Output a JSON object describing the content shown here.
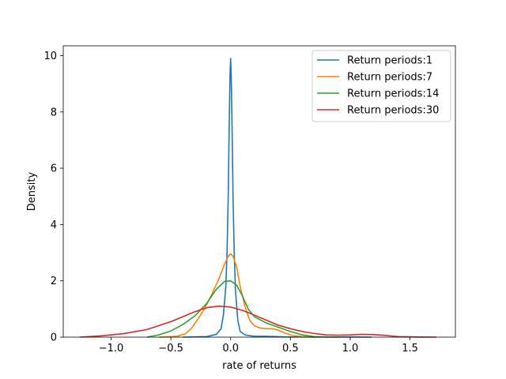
{
  "chart_data": {
    "type": "line",
    "title": "",
    "xlabel": "rate of returns",
    "ylabel": "Density",
    "xlim": [
      -1.4,
      1.88
    ],
    "ylim": [
      0,
      10.35
    ],
    "xticks": [
      -1.0,
      -0.5,
      0.0,
      0.5,
      1.0,
      1.5
    ],
    "xtick_labels": [
      "−1.0",
      "−0.5",
      "0.0",
      "0.5",
      "1.0",
      "1.5"
    ],
    "yticks": [
      0,
      2,
      4,
      6,
      8,
      10
    ],
    "ytick_labels": [
      "0",
      "2",
      "4",
      "6",
      "8",
      "10"
    ],
    "grid": false,
    "legend_position": "top-right",
    "series": [
      {
        "name": "Return periods:1",
        "color": "#1f77b4",
        "x": [
          -0.4,
          -0.2,
          -0.12,
          -0.08,
          -0.06,
          -0.04,
          -0.03,
          -0.02,
          -0.015,
          -0.01,
          -0.005,
          0.0,
          0.005,
          0.01,
          0.015,
          0.02,
          0.03,
          0.04,
          0.06,
          0.08,
          0.12,
          0.2,
          0.3,
          0.45,
          0.7,
          1.0,
          1.18
        ],
        "y": [
          0,
          0.02,
          0.1,
          0.3,
          0.8,
          1.8,
          3.0,
          5.0,
          6.6,
          8.0,
          9.3,
          9.9,
          9.3,
          8.0,
          6.6,
          5.0,
          3.0,
          1.7,
          0.6,
          0.2,
          0.08,
          0.03,
          0.03,
          0.01,
          0.005,
          0.005,
          0
        ]
      },
      {
        "name": "Return periods:7",
        "color": "#ff7f0e",
        "x": [
          -0.6,
          -0.45,
          -0.38,
          -0.33,
          -0.28,
          -0.22,
          -0.16,
          -0.1,
          -0.05,
          -0.02,
          0.0,
          0.02,
          0.05,
          0.08,
          0.12,
          0.16,
          0.2,
          0.25,
          0.3,
          0.35,
          0.4,
          0.45,
          0.52,
          0.6,
          0.7
        ],
        "y": [
          0,
          0.03,
          0.12,
          0.3,
          0.6,
          1.0,
          1.5,
          2.05,
          2.6,
          2.88,
          2.95,
          2.88,
          2.5,
          1.8,
          1.1,
          0.6,
          0.4,
          0.32,
          0.3,
          0.3,
          0.25,
          0.15,
          0.06,
          0.02,
          0
        ]
      },
      {
        "name": "Return periods:14",
        "color": "#2ca02c",
        "x": [
          -0.7,
          -0.6,
          -0.5,
          -0.4,
          -0.3,
          -0.2,
          -0.12,
          -0.05,
          0.0,
          0.05,
          0.1,
          0.15,
          0.2,
          0.3,
          0.4,
          0.5,
          0.6,
          0.7,
          0.8,
          0.9
        ],
        "y": [
          0,
          0.08,
          0.22,
          0.45,
          0.75,
          1.2,
          1.7,
          1.98,
          2.0,
          1.85,
          1.45,
          0.98,
          0.72,
          0.5,
          0.35,
          0.2,
          0.08,
          0.02,
          0.005,
          0
        ]
      },
      {
        "name": "Return periods:30",
        "color": "#d62728",
        "x": [
          -1.26,
          -1.1,
          -0.9,
          -0.7,
          -0.5,
          -0.3,
          -0.2,
          -0.1,
          0.0,
          0.1,
          0.2,
          0.3,
          0.4,
          0.5,
          0.6,
          0.7,
          0.8,
          0.9,
          1.0,
          1.1,
          1.2,
          1.3,
          1.4,
          1.55,
          1.72
        ],
        "y": [
          0,
          0.04,
          0.12,
          0.27,
          0.55,
          0.9,
          1.05,
          1.1,
          1.07,
          0.95,
          0.78,
          0.6,
          0.42,
          0.3,
          0.2,
          0.13,
          0.08,
          0.07,
          0.08,
          0.1,
          0.09,
          0.06,
          0.02,
          0.005,
          0
        ]
      }
    ]
  }
}
